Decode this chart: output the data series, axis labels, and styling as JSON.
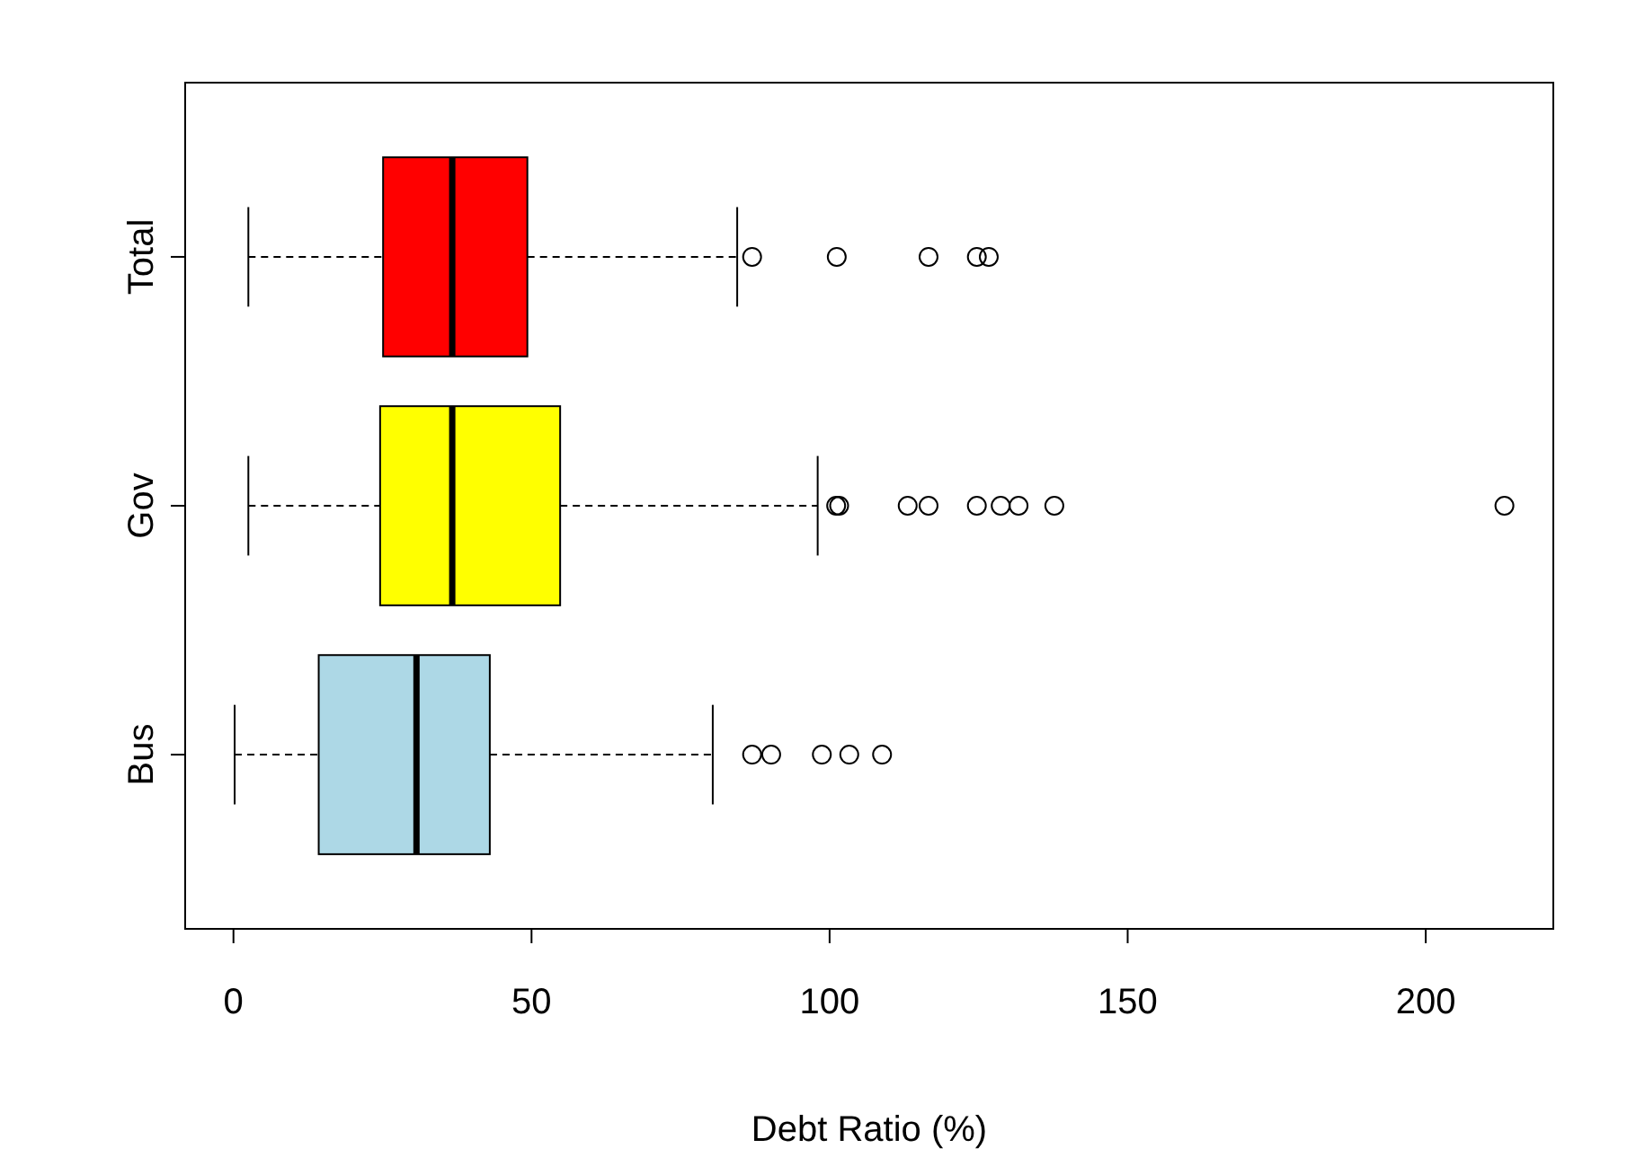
{
  "chart_data": {
    "type": "box",
    "orientation": "horizontal",
    "xlabel": "Debt Ratio (%)",
    "categories": [
      "Total",
      "Gov",
      "Bus"
    ],
    "colors": [
      "#ff0000",
      "#ffff00",
      "#add8e6"
    ],
    "boxes": [
      {
        "low": 2.5,
        "q1": 25.1,
        "median": 36.7,
        "q3": 49.3,
        "high": 84.5,
        "outliers": [
          87,
          101.2,
          116.6,
          124.7,
          126.7
        ]
      },
      {
        "low": 2.5,
        "q1": 24.6,
        "median": 36.7,
        "q3": 54.8,
        "high": 98,
        "outliers": [
          101.1,
          101.6,
          113.1,
          116.6,
          124.7,
          128.7,
          131.7,
          137.7,
          213.2
        ]
      },
      {
        "low": 0.2,
        "q1": 14.3,
        "median": 30.7,
        "q3": 43,
        "high": 80.4,
        "outliers": [
          87,
          90.2,
          98.7,
          103.3,
          108.8
        ]
      }
    ],
    "xlim": [
      -8.1,
      221.4
    ],
    "xticks": [
      0,
      50,
      100,
      150,
      200
    ]
  }
}
